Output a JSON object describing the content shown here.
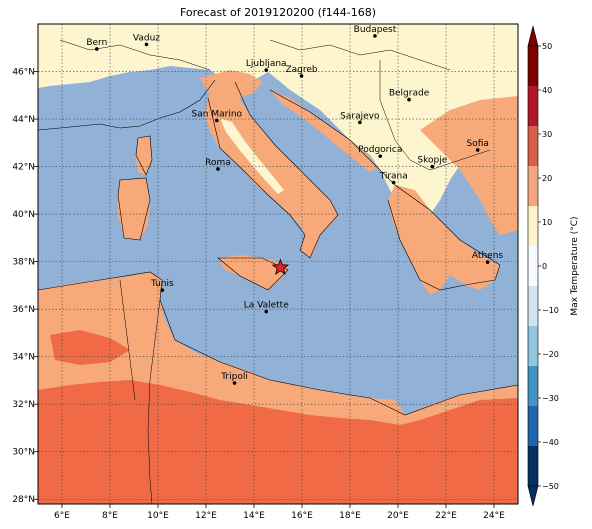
{
  "title": "Forecast of 2019120200 (f144-168)",
  "map": {
    "lon_range": [
      5,
      25
    ],
    "lat_range": [
      27.8,
      48
    ],
    "lon_ticks": [
      "6°E",
      "8°E",
      "10°E",
      "12°E",
      "14°E",
      "16°E",
      "18°E",
      "20°E",
      "22°E",
      "24°E"
    ],
    "lat_ticks": [
      "46°N",
      "44°N",
      "42°N",
      "40°N",
      "38°N",
      "36°N",
      "34°N",
      "32°N",
      "30°N",
      "28°N"
    ],
    "grid": true
  },
  "cities": [
    {
      "name": "Bern",
      "lon": 7.45,
      "lat": 46.95
    },
    {
      "name": "Vaduz",
      "lon": 9.52,
      "lat": 47.14
    },
    {
      "name": "Budapest",
      "lon": 19.04,
      "lat": 47.5
    },
    {
      "name": "Ljubljana",
      "lon": 14.51,
      "lat": 46.06
    },
    {
      "name": "Zagreb",
      "lon": 15.98,
      "lat": 45.81
    },
    {
      "name": "Belgrade",
      "lon": 20.46,
      "lat": 44.82
    },
    {
      "name": "San Marino",
      "lon": 12.45,
      "lat": 43.94
    },
    {
      "name": "Sarajevo",
      "lon": 18.41,
      "lat": 43.86
    },
    {
      "name": "Sofia",
      "lon": 23.32,
      "lat": 42.7
    },
    {
      "name": "Podgorica",
      "lon": 19.26,
      "lat": 42.44
    },
    {
      "name": "Skopje",
      "lon": 21.43,
      "lat": 42.0
    },
    {
      "name": "Roma",
      "lon": 12.5,
      "lat": 41.9
    },
    {
      "name": "Tirana",
      "lon": 19.82,
      "lat": 41.33
    },
    {
      "name": "Athens",
      "lon": 23.73,
      "lat": 37.98
    },
    {
      "name": "Tunis",
      "lon": 10.18,
      "lat": 36.8
    },
    {
      "name": "La Valette",
      "lon": 14.51,
      "lat": 35.9
    },
    {
      "name": "Tripoli",
      "lon": 13.19,
      "lat": 32.89
    }
  ],
  "marker": {
    "symbol": "star",
    "lon": 15.1,
    "lat": 37.75,
    "color": "#e8202a"
  },
  "colorbar": {
    "label": "Max Temperature (°C)",
    "ticks": [
      "50",
      "40",
      "30",
      "20",
      "10",
      "0",
      "−10",
      "−20",
      "−30",
      "−40",
      "−50"
    ],
    "colors": [
      "#7f0000",
      "#b2182b",
      "#d6604d",
      "#f4a582",
      "#fdf2c9",
      "#f7fbff",
      "#d1e5f0",
      "#92c5de",
      "#4393c3",
      "#2166ac",
      "#053061"
    ],
    "extend": "both"
  },
  "palette": {
    "sea": "#92b1d6",
    "land_cool": "#fdf5cd",
    "land_mild": "#f7a97a",
    "land_warm": "#f06a45"
  }
}
